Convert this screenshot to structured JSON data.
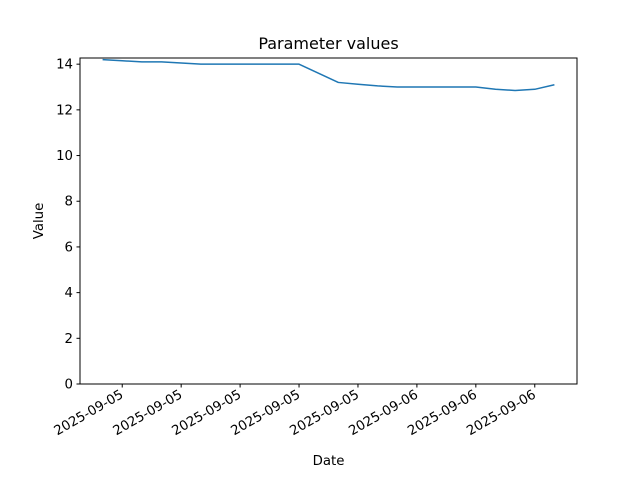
{
  "window": {
    "background_color": "#ffffff"
  },
  "chart_data": {
    "type": "line",
    "title": "Parameter values",
    "xlabel": "Date",
    "ylabel": "Value",
    "grid": false,
    "legend": "none",
    "line_color": "#1f77b4",
    "line_width": 1.5,
    "spine_color": "#000000",
    "xlim": [
      -1.15,
      24.15
    ],
    "ylim": [
      0,
      14.27
    ],
    "x_unit_note": "hours elapsed along time axis",
    "x": [
      0,
      1,
      2,
      3,
      4,
      5,
      6,
      7,
      8,
      9,
      10,
      11,
      12,
      13,
      14,
      15,
      16,
      17,
      18,
      19,
      20,
      21,
      22,
      23
    ],
    "values": [
      14.2,
      14.15,
      14.1,
      14.1,
      14.05,
      14.0,
      14.0,
      14.0,
      14.0,
      14.0,
      14.0,
      13.6,
      13.2,
      13.12,
      13.05,
      13.0,
      13.0,
      13.0,
      13.0,
      13.0,
      12.9,
      12.85,
      12.9,
      13.1
    ],
    "xticks": {
      "positions": [
        1,
        4,
        7,
        10,
        13,
        16,
        19,
        22
      ],
      "labels": [
        "2025-09-05",
        "2025-09-05",
        "2025-09-05",
        "2025-09-05",
        "2025-09-05",
        "2025-09-06",
        "2025-09-06",
        "2025-09-06"
      ],
      "rotation_deg": 30
    },
    "yticks": {
      "positions": [
        0,
        2,
        4,
        6,
        8,
        10,
        12,
        14
      ],
      "labels": [
        "0",
        "2",
        "4",
        "6",
        "8",
        "10",
        "12",
        "14"
      ]
    }
  }
}
